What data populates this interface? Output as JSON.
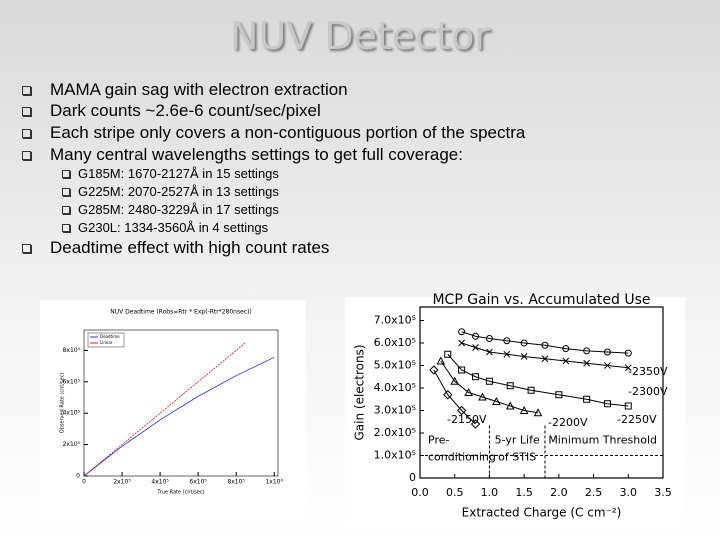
{
  "header": {
    "title": "NUV Detector"
  },
  "bullets": [
    "MAMA gain sag with electron extraction",
    "Dark counts ~2.6e-6 count/sec/pixel",
    "Each stripe only covers a non-contiguous portion of the spectra",
    "Many central wavelengths settings to get full coverage:"
  ],
  "sub_bullets": [
    "G185M: 1670-2127Å in 15 settings",
    "G225M: 2070-2527Å in 13 settings",
    "G285M: 2480-3229Å in 17 settings",
    "G230L: 1334-3560Å in 4 settings"
  ],
  "last_bullet": "Deadtime effect with high count rates",
  "charts": [
    {
      "type": "line",
      "title": "NUV Deadtime (Robs=Rtr * Exp(-Rtr*280nsec))",
      "x_label": "True Rate (cnt/sec)",
      "y_label": "Observed Rate (cnt/sec)",
      "xlim": [
        0,
        1020000
      ],
      "ylim": [
        0,
        930000
      ],
      "xticks": [
        0,
        {
          "value": 200000,
          "label": "2x10⁵"
        },
        {
          "value": 400000,
          "label": "4x10⁵"
        },
        {
          "value": 600000,
          "label": "6x10⁵"
        },
        {
          "value": 800000,
          "label": "8x10⁵"
        },
        {
          "value": 1000000,
          "label": "1x10⁶"
        }
      ],
      "yticks": [
        0,
        {
          "value": 200000,
          "label": "2x10⁵"
        },
        {
          "value": 400000,
          "label": "4x10⁵"
        },
        {
          "value": 600000,
          "label": "6x10⁵"
        },
        {
          "value": 800000,
          "label": "8x10⁵"
        }
      ],
      "legend": "upper left",
      "series": [
        {
          "name": "Deadtime",
          "color": "#2233cc",
          "x": [
            0,
            200000,
            400000,
            600000,
            800000,
            1000000
          ],
          "values": [
            0,
            189000,
            357000,
            507000,
            639000,
            756000
          ]
        },
        {
          "name": "Linear",
          "color": "#cc2222",
          "x": [
            0,
            850000
          ],
          "values": [
            0,
            850000
          ]
        }
      ]
    },
    {
      "type": "line",
      "title": "MCP Gain vs. Accumulated Use",
      "x_label": "Extracted Charge (C cm⁻²)",
      "y_label": "Gain (electrons)",
      "xlim": [
        0,
        3.5
      ],
      "ylim": [
        0,
        760000
      ],
      "xticks": [
        {
          "value": 0,
          "label": "0.0"
        },
        0.5,
        {
          "value": 1,
          "label": "1.0"
        },
        1.5,
        {
          "value": 2,
          "label": "2.0"
        },
        2.5,
        {
          "value": 3,
          "label": "3.0"
        },
        3.5
      ],
      "yticks": [
        0,
        {
          "value": 100000,
          "label": "1.0x10⁵"
        },
        {
          "value": 200000,
          "label": "2.0x10⁵"
        },
        {
          "value": 300000,
          "label": "3.0x10⁵"
        },
        {
          "value": 400000,
          "label": "4.0x10⁵"
        },
        {
          "value": 500000,
          "label": "5.0x10⁵"
        },
        {
          "value": 600000,
          "label": "6.0x10⁵"
        },
        {
          "value": 700000,
          "label": "7.0x10⁵"
        }
      ],
      "threshold": 100000,
      "annotations": [
        "Pre-",
        "conditioning",
        "5-yr Life",
        "of STIS",
        "Minimum Threshold"
      ],
      "series": [
        {
          "name": "-2350V",
          "color": "#000000",
          "marker": "circle",
          "x": [
            0.6,
            0.8,
            1.0,
            1.25,
            1.5,
            1.8,
            2.1,
            2.4,
            2.7,
            3.0
          ],
          "values": [
            650000,
            630000,
            620000,
            610000,
            600000,
            590000,
            575000,
            565000,
            560000,
            555000
          ]
        },
        {
          "name": "-2300V",
          "color": "#000000",
          "marker": "x",
          "x": [
            0.6,
            0.8,
            1.0,
            1.25,
            1.5,
            1.8,
            2.1,
            2.4,
            2.7,
            3.0
          ],
          "values": [
            600000,
            580000,
            560000,
            550000,
            540000,
            530000,
            520000,
            510000,
            500000,
            490000
          ]
        },
        {
          "name": "-2250V",
          "color": "#000000",
          "marker": "square",
          "x": [
            0.4,
            0.6,
            0.8,
            1.0,
            1.3,
            1.6,
            2.0,
            2.4,
            2.7,
            3.0
          ],
          "values": [
            550000,
            480000,
            450000,
            430000,
            410000,
            390000,
            370000,
            350000,
            330000,
            320000
          ]
        },
        {
          "name": "-2200V",
          "color": "#000000",
          "marker": "triangle",
          "x": [
            0.3,
            0.5,
            0.7,
            0.9,
            1.1,
            1.3,
            1.5,
            1.7
          ],
          "values": [
            520000,
            430000,
            380000,
            360000,
            340000,
            320000,
            300000,
            290000
          ]
        },
        {
          "name": "-2150V",
          "color": "#000000",
          "marker": "diamond",
          "x": [
            0.2,
            0.4,
            0.6,
            0.8
          ],
          "values": [
            480000,
            370000,
            300000,
            240000
          ]
        }
      ]
    }
  ]
}
